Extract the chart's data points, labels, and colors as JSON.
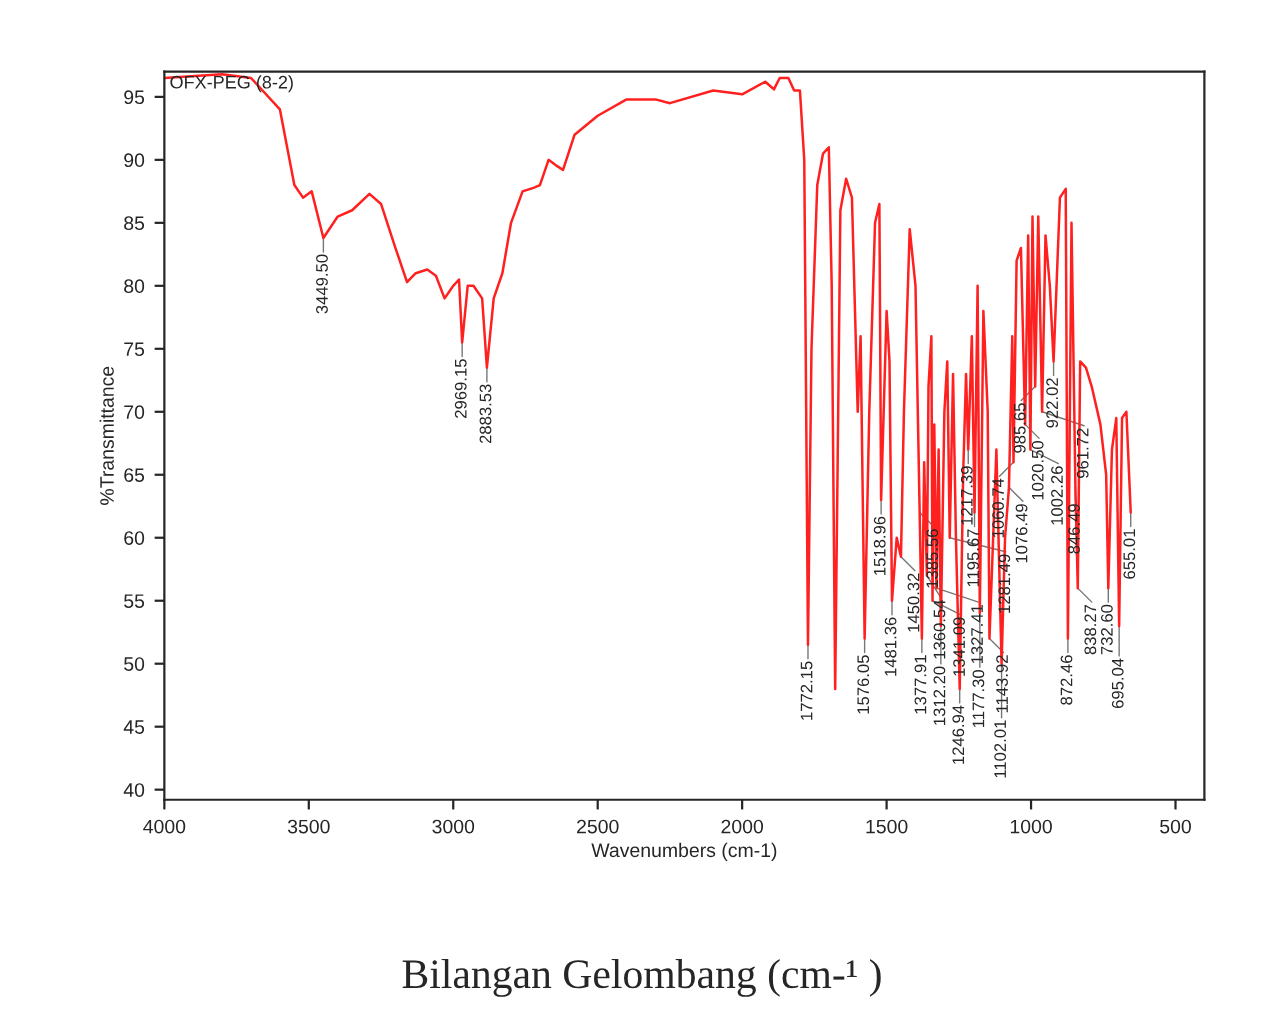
{
  "chart_data": {
    "type": "line",
    "xlabel": "Wavenumbers (cm-1)",
    "ylabel": "%Transmittance",
    "xlim": [
      4000,
      400
    ],
    "ylim": [
      39.2,
      97
    ],
    "xticks": [
      4000,
      3500,
      3000,
      2500,
      2000,
      1500,
      1000,
      500
    ],
    "yticks": [
      40,
      45,
      50,
      55,
      60,
      65,
      70,
      75,
      80,
      85,
      90,
      95
    ],
    "grid": false,
    "marker": "none",
    "line_style": "solid",
    "series": [
      {
        "color": "#ff2020",
        "x": [
          4000,
          3800,
          3700,
          3600,
          3550,
          3520,
          3490,
          3449.5,
          3400,
          3350,
          3290,
          3250,
          3200,
          3160,
          3130,
          3090,
          3060,
          3030,
          3000,
          2980,
          2969.15,
          2950,
          2930,
          2900,
          2883.53,
          2860,
          2830,
          2800,
          2760,
          2720,
          2700,
          2670,
          2640,
          2620,
          2580,
          2500,
          2400,
          2300,
          2250,
          2100,
          2000,
          1920,
          1890,
          1870,
          1840,
          1820,
          1800,
          1785,
          1772.15,
          1760,
          1740,
          1720,
          1700,
          1690,
          1678,
          1660,
          1640,
          1620,
          1600,
          1590,
          1576.05,
          1560,
          1540,
          1525,
          1518.96,
          1500,
          1490,
          1481.36,
          1465,
          1450.32,
          1440,
          1420,
          1400,
          1385.56,
          1377.91,
          1370,
          1360.54,
          1355,
          1345,
          1341.09,
          1335,
          1327.41,
          1320,
          1312.2,
          1300,
          1290,
          1281.49,
          1270,
          1260,
          1246.94,
          1235,
          1225,
          1217.39,
          1205,
          1195.67,
          1185,
          1177.3,
          1165,
          1150,
          1143.92,
          1120,
          1102.01,
          1090,
          1076.49,
          1065,
          1060.74,
          1050,
          1035,
          1020.5,
          1010,
          1002.26,
          995,
          985.65,
          975,
          961.72,
          950,
          935,
          922.02,
          900,
          880,
          872.46,
          860,
          846.49,
          838.27,
          830,
          810,
          790,
          760,
          740,
          732.6,
          720,
          705,
          695.04,
          685,
          670,
          655.01
        ],
        "values": [
          96.5,
          96.8,
          96.5,
          94,
          88,
          87,
          87.5,
          83.8,
          85.5,
          86,
          87.3,
          86.5,
          83,
          80.3,
          81,
          81.3,
          80.8,
          79,
          80,
          80.5,
          75.5,
          80,
          80,
          79,
          73.5,
          79,
          81,
          85,
          87.5,
          87.8,
          88,
          90,
          89.5,
          89.2,
          92,
          93.5,
          94.8,
          94.8,
          94.5,
          95.5,
          95.2,
          96.2,
          95.6,
          96.5,
          96.5,
          95.5,
          95.5,
          90,
          51.5,
          75,
          88,
          90.5,
          91,
          80,
          48,
          86,
          88.5,
          87,
          70,
          76,
          52,
          70,
          85,
          86.5,
          63,
          78,
          74,
          55,
          60,
          58.5,
          70,
          84.5,
          80,
          62,
          52,
          66,
          57,
          72,
          76,
          55,
          69,
          56,
          67,
          53,
          70,
          74,
          60,
          73,
          60,
          48,
          65,
          73,
          67,
          76,
          62,
          80,
          54,
          78,
          70,
          52,
          67,
          50,
          60,
          64,
          76,
          66,
          82,
          83,
          69,
          84,
          67,
          85.5,
          72,
          85.5,
          70,
          84,
          80,
          74,
          87,
          87.7,
          52,
          85,
          64,
          56,
          74,
          73.5,
          72,
          69,
          65,
          56,
          67,
          69.5,
          53,
          69.5,
          70,
          62
        ]
      }
    ],
    "annotations": [
      "OFX-PEG (8-2)",
      {
        "text": "3449.50",
        "x": 3449.5,
        "y": 83.8
      },
      {
        "text": "2969.15",
        "x": 2969.15,
        "y": 75.5
      },
      {
        "text": "2883.53",
        "x": 2883.53,
        "y": 73.5
      },
      {
        "text": "1772.15",
        "x": 1772.15,
        "y": 51.5
      },
      {
        "text": "1576.05",
        "x": 1576.05,
        "y": 52
      },
      {
        "text": "1518.96",
        "x": 1518.96,
        "y": 63
      },
      {
        "text": "1481.36",
        "x": 1481.36,
        "y": 55
      },
      {
        "text": "1450.32",
        "x": 1450.32,
        "y": 58.5
      },
      {
        "text": "1385.56",
        "x": 1385.56,
        "y": 62
      },
      {
        "text": "1377.91",
        "x": 1377.91,
        "y": 52
      },
      {
        "text": "1360.54",
        "x": 1360.54,
        "y": 57
      },
      {
        "text": "1341.09",
        "x": 1341.09,
        "y": 55
      },
      {
        "text": "1327.41",
        "x": 1327.41,
        "y": 56
      },
      {
        "text": "1312.20",
        "x": 1312.2,
        "y": 53
      },
      {
        "text": "1281.49",
        "x": 1281.49,
        "y": 60
      },
      {
        "text": "1246.94",
        "x": 1246.94,
        "y": 48
      },
      {
        "text": "1217.39",
        "x": 1217.39,
        "y": 67
      },
      {
        "text": "1195.67",
        "x": 1195.67,
        "y": 62
      },
      {
        "text": "1177.30",
        "x": 1177.3,
        "y": 54
      },
      {
        "text": "1143.92",
        "x": 1143.92,
        "y": 52
      },
      {
        "text": "1102.01",
        "x": 1102.01,
        "y": 50
      },
      {
        "text": "1076.49",
        "x": 1076.49,
        "y": 64
      },
      {
        "text": "1060.74",
        "x": 1060.74,
        "y": 66
      },
      {
        "text": "1020.50",
        "x": 1020.5,
        "y": 69
      },
      {
        "text": "1002.26",
        "x": 1002.26,
        "y": 67
      },
      {
        "text": "985.65",
        "x": 985.65,
        "y": 72
      },
      {
        "text": "961.72",
        "x": 961.72,
        "y": 70
      },
      {
        "text": "922.02",
        "x": 922.02,
        "y": 74
      },
      {
        "text": "872.46",
        "x": 872.46,
        "y": 52
      },
      {
        "text": "846.49",
        "x": 846.49,
        "y": 64
      },
      {
        "text": "838.27",
        "x": 838.27,
        "y": 56
      },
      {
        "text": "732.60",
        "x": 732.6,
        "y": 56
      },
      {
        "text": "695.04",
        "x": 695.04,
        "y": 53
      },
      {
        "text": "655.01",
        "x": 655.01,
        "y": 62
      },
      "Bilangan Gelombang (cm-¹ )"
    ]
  }
}
